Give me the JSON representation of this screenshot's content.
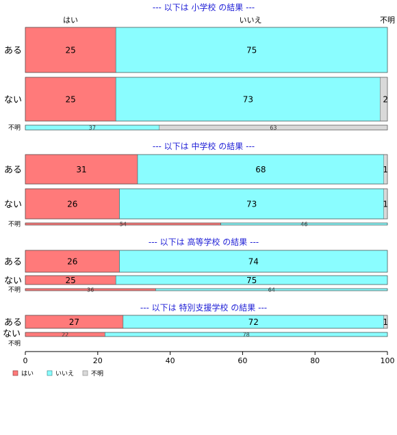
{
  "chart_data": {
    "type": "bar",
    "orientation": "horizontal",
    "stacked": true,
    "percent": true,
    "xlim": [
      0,
      100
    ],
    "x_ticks": [
      0,
      20,
      40,
      60,
      80,
      100
    ],
    "column_headers": [
      "はい",
      "いいえ",
      "不明"
    ],
    "legend": {
      "placement": "bottom-left",
      "entries": [
        "はい",
        "いいえ",
        "不明"
      ]
    },
    "colors": {
      "はい": "#ff7a7a",
      "いいえ": "#8afdff",
      "不明": "#d9d9d9"
    },
    "panels": [
      {
        "title": "--- 以下は 小学校 の結果 ---",
        "rows": [
          {
            "label": "ある",
            "values": [
              25,
              75,
              0
            ]
          },
          {
            "label": "ない",
            "values": [
              25,
              73,
              2
            ]
          },
          {
            "label": "不明",
            "values": [
              0,
              37,
              63
            ]
          }
        ]
      },
      {
        "title": "--- 以下は 中学校 の結果 ---",
        "rows": [
          {
            "label": "ある",
            "values": [
              31,
              68,
              1
            ]
          },
          {
            "label": "ない",
            "values": [
              26,
              73,
              1
            ]
          },
          {
            "label": "不明",
            "values": [
              54,
              46,
              0
            ]
          }
        ]
      },
      {
        "title": "--- 以下は 高等学校 の結果 ---",
        "rows": [
          {
            "label": "ある",
            "values": [
              26,
              74,
              0
            ]
          },
          {
            "label": "ない",
            "values": [
              25,
              75,
              0
            ]
          },
          {
            "label": "不明",
            "values": [
              36,
              64,
              0
            ]
          }
        ]
      },
      {
        "title": "--- 以下は 特別支援学校 の結果 ---",
        "rows": [
          {
            "label": "ある",
            "values": [
              27,
              72,
              1
            ]
          },
          {
            "label": "ない",
            "values": [
              22,
              78,
              0
            ]
          },
          {
            "label": "不明",
            "values": []
          }
        ]
      }
    ]
  }
}
